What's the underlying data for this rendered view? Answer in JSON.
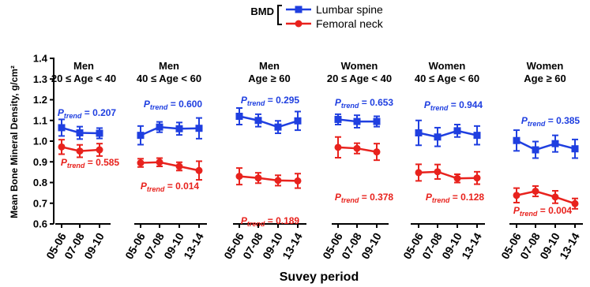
{
  "chart_data": {
    "type": "line",
    "ylabel": "Mean Bone Mineral Density, g/cm²",
    "xlabel": "Suvey period",
    "ylim": [
      0.6,
      1.4
    ],
    "yticks": [
      "0.6",
      "0.7",
      "0.8",
      "0.9",
      "1.0",
      "1.1",
      "1.2",
      "1.3",
      "1.4"
    ],
    "legend": {
      "title": "BMD",
      "placement": "top-center",
      "entries": [
        {
          "name": "Lumbar spine",
          "color": "#1f3fe0",
          "marker": "square"
        },
        {
          "name": "Femoral neck",
          "color": "#e8221d",
          "marker": "circle"
        }
      ]
    },
    "p_prefix": "P",
    "p_subscript": "trend",
    "panels": [
      {
        "title_line1": "Men",
        "title_line2": "20 ≤ Age < 40",
        "categories": [
          "05-06",
          "07-08",
          "09-10"
        ],
        "series": [
          {
            "name": "Lumbar spine",
            "values": [
              1.065,
              1.04,
              1.038
            ],
            "err": [
              0.04,
              0.03,
              0.025
            ],
            "p_trend": "= 0.207"
          },
          {
            "name": "Femoral neck",
            "values": [
              0.972,
              0.952,
              0.958
            ],
            "err": [
              0.035,
              0.03,
              0.03
            ],
            "p_trend": "= 0.585"
          }
        ]
      },
      {
        "title_line1": "Men",
        "title_line2": "40 ≤ Age < 60",
        "categories": [
          "05-06",
          "07-08",
          "09-10",
          "13-14"
        ],
        "series": [
          {
            "name": "Lumbar spine",
            "values": [
              1.028,
              1.068,
              1.06,
              1.062
            ],
            "err": [
              0.045,
              0.025,
              0.03,
              0.05
            ],
            "p_trend": "= 0.600"
          },
          {
            "name": "Femoral neck",
            "values": [
              0.895,
              0.898,
              0.878,
              0.858
            ],
            "err": [
              0.02,
              0.02,
              0.02,
              0.045
            ],
            "p_trend": "= 0.014"
          }
        ]
      },
      {
        "title_line1": "Men",
        "title_line2": "Age ≥ 60",
        "categories": [
          "05-06",
          "07-08",
          "09-10",
          "13-14"
        ],
        "series": [
          {
            "name": "Lumbar spine",
            "values": [
              1.12,
              1.1,
              1.068,
              1.098
            ],
            "err": [
              0.04,
              0.03,
              0.03,
              0.045
            ],
            "p_trend": "= 0.295"
          },
          {
            "name": "Femoral neck",
            "values": [
              0.83,
              0.822,
              0.81,
              0.808
            ],
            "err": [
              0.04,
              0.025,
              0.025,
              0.035
            ],
            "p_trend": "= 0.189"
          }
        ]
      },
      {
        "title_line1": "Women",
        "title_line2": "20 ≤ Age < 40",
        "categories": [
          "05-06",
          "07-08",
          "09-10"
        ],
        "series": [
          {
            "name": "Lumbar spine",
            "values": [
              1.105,
              1.095,
              1.095
            ],
            "err": [
              0.025,
              0.03,
              0.025
            ],
            "p_trend": "= 0.653"
          },
          {
            "name": "Femoral neck",
            "values": [
              0.97,
              0.965,
              0.948
            ],
            "err": [
              0.05,
              0.025,
              0.04
            ],
            "p_trend": "= 0.378"
          }
        ]
      },
      {
        "title_line1": "Women",
        "title_line2": "40 ≤ Age < 60",
        "categories": [
          "05-06",
          "07-08",
          "09-10",
          "13-14"
        ],
        "series": [
          {
            "name": "Lumbar spine",
            "values": [
              1.04,
              1.02,
              1.05,
              1.028
            ],
            "err": [
              0.06,
              0.045,
              0.03,
              0.045
            ],
            "p_trend": "= 0.944"
          },
          {
            "name": "Femoral neck",
            "values": [
              0.848,
              0.852,
              0.82,
              0.822
            ],
            "err": [
              0.04,
              0.035,
              0.02,
              0.03
            ],
            "p_trend": "= 0.128"
          }
        ]
      },
      {
        "title_line1": "Women",
        "title_line2": "Age ≥ 60",
        "categories": [
          "05-06",
          "07-08",
          "09-10",
          "13-14"
        ],
        "series": [
          {
            "name": "Lumbar spine",
            "values": [
              1.003,
              0.958,
              0.988,
              0.963
            ],
            "err": [
              0.05,
              0.04,
              0.04,
              0.045
            ],
            "p_trend": "= 0.385"
          },
          {
            "name": "Femoral neck",
            "values": [
              0.738,
              0.758,
              0.73,
              0.698
            ],
            "err": [
              0.035,
              0.025,
              0.03,
              0.025
            ],
            "p_trend": "= 0.004"
          }
        ]
      }
    ]
  }
}
